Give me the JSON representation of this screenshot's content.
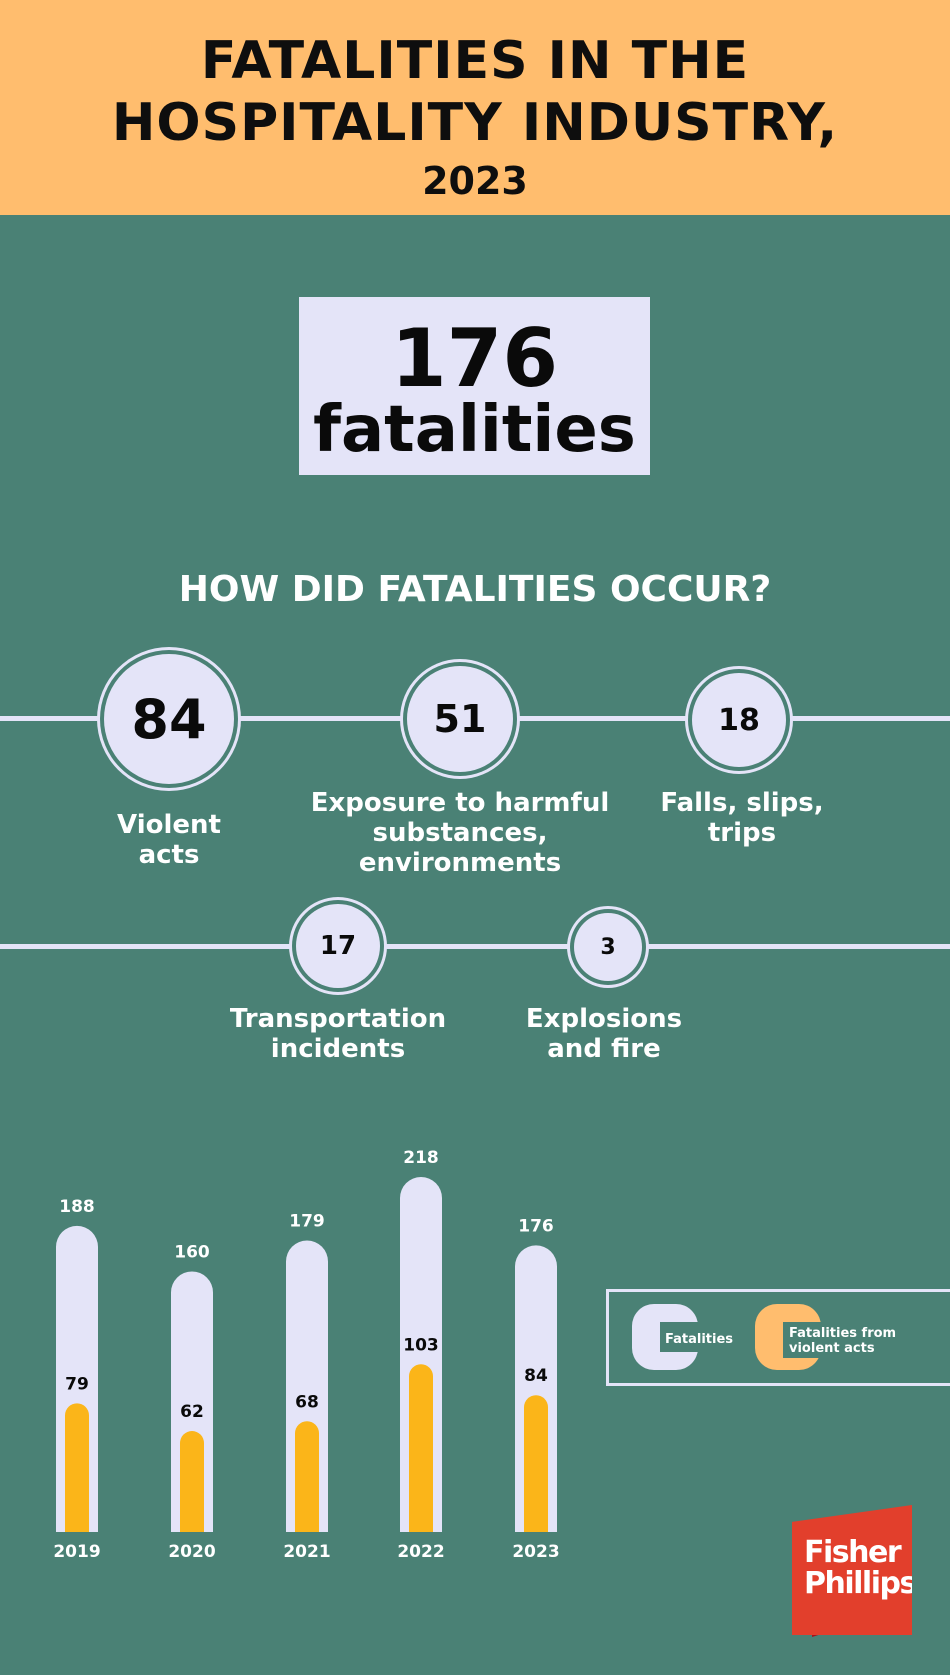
{
  "header": {
    "line1": "FATALITIES IN THE",
    "line2": "HOSPITALITY INDUSTRY,",
    "year": "2023"
  },
  "total": {
    "number": "176",
    "word": "fatalities"
  },
  "causes": {
    "title": "HOW DID FATALITIES OCCUR?",
    "items": [
      {
        "value": "84",
        "label_line1": "Violent",
        "label_line2": "acts",
        "label_line3": ""
      },
      {
        "value": "51",
        "label_line1": "Exposure to harmful",
        "label_line2": "substances,",
        "label_line3": "environments"
      },
      {
        "value": "18",
        "label_line1": "Falls, slips,",
        "label_line2": "trips",
        "label_line3": ""
      },
      {
        "value": "17",
        "label_line1": "Transportation",
        "label_line2": "incidents",
        "label_line3": ""
      },
      {
        "value": "3",
        "label_line1": "Explosions",
        "label_line2": "and fire",
        "label_line3": ""
      }
    ]
  },
  "chart_data": {
    "type": "bar",
    "categories": [
      "2019",
      "2020",
      "2021",
      "2022",
      "2023"
    ],
    "series": [
      {
        "name": "Fatalities",
        "values": [
          188,
          160,
          179,
          218,
          176
        ],
        "color": "#e4e4f8"
      },
      {
        "name": "Fatalities from violent acts",
        "values": [
          79,
          62,
          68,
          103,
          84
        ],
        "color": "#fbb519"
      }
    ],
    "ylim": [
      0,
      218
    ]
  },
  "legend": {
    "fatalities": "Fatalities",
    "violent_line1": "Fatalities from",
    "violent_line2": "violent acts"
  },
  "logo": {
    "line1": "Fisher",
    "line2": "Phillips"
  }
}
